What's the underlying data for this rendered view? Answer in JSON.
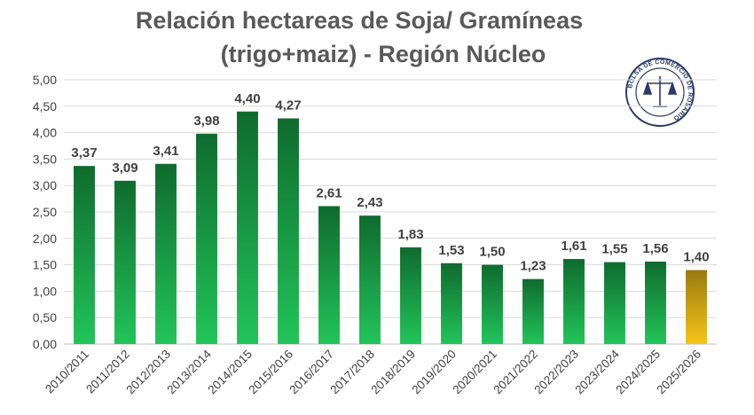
{
  "chart_data": {
    "type": "bar",
    "title_line1": "Relación hectareas de Soja/ Gramíneas",
    "title_line2": "(trigo+maiz) - Región Núcleo",
    "categories": [
      "2010/2011",
      "2011/2012",
      "2012/2013",
      "2013/2014",
      "2014/2015",
      "2015/2016",
      "2016/2017",
      "2017/2018",
      "2018/2019",
      "2019/2020",
      "2020/2021",
      "2021/2022",
      "2022/2023",
      "2023/2024",
      "2024/2025",
      "2025/2026"
    ],
    "values": [
      3.37,
      3.09,
      3.41,
      3.98,
      4.4,
      4.27,
      2.61,
      2.43,
      1.83,
      1.53,
      1.5,
      1.23,
      1.61,
      1.55,
      1.56,
      1.4
    ],
    "value_labels": [
      "3,37",
      "3,09",
      "3,41",
      "3,98",
      "4,40",
      "4,27",
      "2,61",
      "2,43",
      "1,83",
      "1,53",
      "1,50",
      "1,23",
      "1,61",
      "1,55",
      "1,56",
      "1,40"
    ],
    "yticks": [
      "0,00",
      "0,50",
      "1,00",
      "1,50",
      "2,00",
      "2,50",
      "3,00",
      "3,50",
      "4,00",
      "4,50",
      "5,00"
    ],
    "ylim": [
      0,
      5
    ],
    "grid": true,
    "highlight_index": 15,
    "colors": {
      "bar_top": "#0f6b2e",
      "bar_bottom": "#22c45a",
      "highlight_top": "#9a7a10",
      "highlight_bottom": "#f5c518",
      "grid": "#d9d9d9",
      "title": "#595959"
    },
    "logo": {
      "text": "BOLSA DE COMERCIO DE ROSARIO"
    }
  }
}
